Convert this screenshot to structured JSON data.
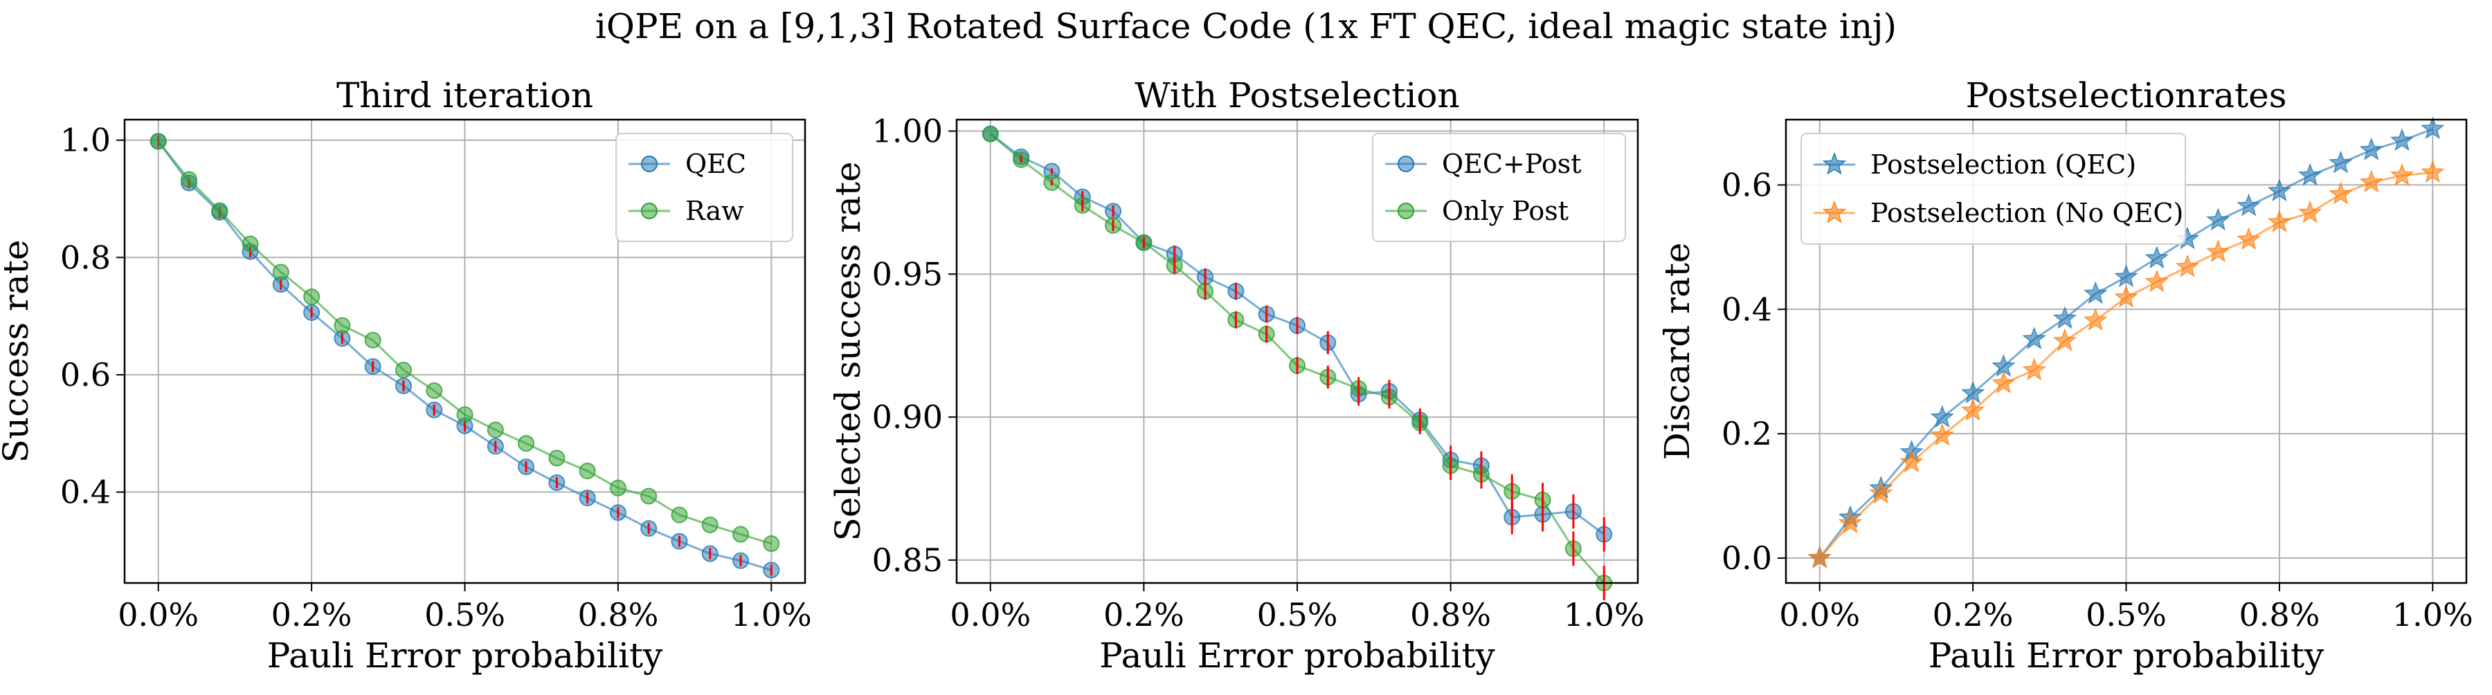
{
  "figure": {
    "suptitle": "iQPE on a [9,1,3] Rotated Surface Code (1x FT QEC, ideal magic state inj)"
  },
  "colors": {
    "blue": "#1f77b4",
    "orange": "#ff7f0e",
    "green": "#2ca02c",
    "errorbar": "#ff0000",
    "grid": "#b0b0b0"
  },
  "chart_data": [
    {
      "type": "line",
      "title": "Third iteration",
      "xlabel": "Pauli Error probability",
      "ylabel": "Success rate",
      "x": [
        0.0,
        0.05,
        0.1,
        0.15,
        0.2,
        0.25,
        0.3,
        0.35,
        0.4,
        0.45,
        0.5,
        0.55,
        0.6,
        0.65,
        0.7,
        0.75,
        0.8,
        0.85,
        0.9,
        0.95,
        1.0
      ],
      "xlim": [
        -0.055,
        1.055
      ],
      "ylim": [
        0.245,
        1.035
      ],
      "xticks": [
        0.0,
        0.25,
        0.5,
        0.75,
        1.0
      ],
      "xtick_labels": [
        "0.0%",
        "0.2%",
        "0.5%",
        "0.8%",
        "1.0%"
      ],
      "yticks": [
        0.4,
        0.6,
        0.8,
        1.0
      ],
      "ytick_labels": [
        "0.4",
        "0.6",
        "0.8",
        "1.0"
      ],
      "grid": true,
      "legend_position": "top-right",
      "series": [
        {
          "name": "QEC",
          "color": "#1f77b4",
          "marker": "circle",
          "errorbars": true,
          "values": [
            0.998,
            0.927,
            0.877,
            0.81,
            0.754,
            0.706,
            0.662,
            0.614,
            0.581,
            0.54,
            0.513,
            0.478,
            0.443,
            0.416,
            0.39,
            0.365,
            0.338,
            0.316,
            0.295,
            0.283,
            0.267
          ]
        },
        {
          "name": "Raw",
          "color": "#2ca02c",
          "marker": "circle",
          "errorbars": false,
          "values": [
            0.998,
            0.933,
            0.88,
            0.823,
            0.775,
            0.733,
            0.684,
            0.659,
            0.608,
            0.573,
            0.532,
            0.506,
            0.483,
            0.458,
            0.436,
            0.407,
            0.393,
            0.361,
            0.344,
            0.328,
            0.312
          ]
        }
      ]
    },
    {
      "type": "line",
      "title": "With Postselection",
      "xlabel": "Pauli Error probability",
      "ylabel": "Selected success rate",
      "x": [
        0.0,
        0.05,
        0.1,
        0.15,
        0.2,
        0.25,
        0.3,
        0.35,
        0.4,
        0.45,
        0.5,
        0.55,
        0.6,
        0.65,
        0.7,
        0.75,
        0.8,
        0.85,
        0.9,
        0.95,
        1.0
      ],
      "xlim": [
        -0.055,
        1.055
      ],
      "ylim": [
        0.842,
        1.004
      ],
      "xticks": [
        0.0,
        0.25,
        0.5,
        0.75,
        1.0
      ],
      "xtick_labels": [
        "0.0%",
        "0.2%",
        "0.5%",
        "0.8%",
        "1.0%"
      ],
      "yticks": [
        0.85,
        0.9,
        0.95,
        1.0
      ],
      "ytick_labels": [
        "0.85",
        "0.90",
        "0.95",
        "1.00"
      ],
      "grid": true,
      "legend_position": "top-right",
      "series": [
        {
          "name": "QEC+Post",
          "color": "#1f77b4",
          "marker": "circle",
          "values": [
            0.999,
            0.991,
            0.986,
            0.977,
            0.972,
            0.961,
            0.957,
            0.949,
            0.944,
            0.936,
            0.932,
            0.926,
            0.908,
            0.909,
            0.899,
            0.885,
            0.883,
            0.865,
            0.866,
            0.867,
            0.859
          ],
          "errors": [
            0.0,
            0.001,
            0.001,
            0.002,
            0.002,
            0.002,
            0.003,
            0.003,
            0.003,
            0.003,
            0.003,
            0.004,
            0.004,
            0.004,
            0.004,
            0.005,
            0.005,
            0.006,
            0.006,
            0.006,
            0.006
          ]
        },
        {
          "name": "Only Post",
          "color": "#2ca02c",
          "marker": "circle",
          "values": [
            0.999,
            0.99,
            0.982,
            0.974,
            0.967,
            0.961,
            0.953,
            0.944,
            0.934,
            0.929,
            0.918,
            0.914,
            0.91,
            0.907,
            0.898,
            0.883,
            0.88,
            0.874,
            0.871,
            0.854,
            0.842
          ],
          "errors": [
            0.0,
            0.001,
            0.001,
            0.002,
            0.002,
            0.002,
            0.003,
            0.003,
            0.003,
            0.003,
            0.003,
            0.004,
            0.004,
            0.004,
            0.004,
            0.005,
            0.005,
            0.006,
            0.006,
            0.006,
            0.006
          ]
        }
      ]
    },
    {
      "type": "line",
      "title": "Postselectionrates",
      "xlabel": "Pauli Error probability",
      "ylabel": "Discard rate",
      "x": [
        0.0,
        0.05,
        0.1,
        0.15,
        0.2,
        0.25,
        0.3,
        0.35,
        0.4,
        0.45,
        0.5,
        0.55,
        0.6,
        0.65,
        0.7,
        0.75,
        0.8,
        0.85,
        0.9,
        0.95,
        1.0
      ],
      "xlim": [
        -0.055,
        1.055
      ],
      "ylim": [
        -0.04,
        0.705
      ],
      "xticks": [
        0.0,
        0.25,
        0.5,
        0.75,
        1.0
      ],
      "xtick_labels": [
        "0.0%",
        "0.2%",
        "0.5%",
        "0.8%",
        "1.0%"
      ],
      "yticks": [
        0.0,
        0.2,
        0.4,
        0.6
      ],
      "ytick_labels": [
        "0.0",
        "0.2",
        "0.4",
        "0.6"
      ],
      "grid": true,
      "legend_position": "top-left",
      "series": [
        {
          "name": "Postselection (QEC)",
          "color": "#1f77b4",
          "marker": "star",
          "values": [
            0.0,
            0.065,
            0.112,
            0.17,
            0.226,
            0.265,
            0.308,
            0.352,
            0.385,
            0.425,
            0.452,
            0.482,
            0.513,
            0.543,
            0.566,
            0.59,
            0.615,
            0.635,
            0.656,
            0.671,
            0.69
          ]
        },
        {
          "name": "Postselection (No QEC)",
          "color": "#ff7f0e",
          "marker": "star",
          "values": [
            0.0,
            0.056,
            0.104,
            0.154,
            0.197,
            0.237,
            0.281,
            0.302,
            0.349,
            0.382,
            0.419,
            0.444,
            0.468,
            0.492,
            0.512,
            0.54,
            0.555,
            0.585,
            0.604,
            0.615,
            0.62
          ]
        }
      ]
    }
  ]
}
